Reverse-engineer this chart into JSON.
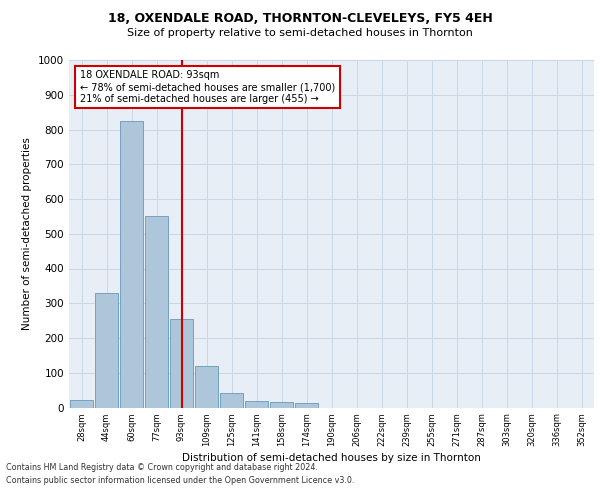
{
  "title1": "18, OXENDALE ROAD, THORNTON-CLEVELEYS, FY5 4EH",
  "title2": "Size of property relative to semi-detached houses in Thornton",
  "xlabel": "Distribution of semi-detached houses by size in Thornton",
  "ylabel": "Number of semi-detached properties",
  "categories": [
    "28sqm",
    "44sqm",
    "60sqm",
    "77sqm",
    "93sqm",
    "109sqm",
    "125sqm",
    "141sqm",
    "158sqm",
    "174sqm",
    "190sqm",
    "206sqm",
    "222sqm",
    "239sqm",
    "255sqm",
    "271sqm",
    "287sqm",
    "303sqm",
    "320sqm",
    "336sqm",
    "352sqm"
  ],
  "values": [
    22,
    330,
    825,
    550,
    255,
    118,
    43,
    20,
    15,
    13,
    0,
    0,
    0,
    0,
    0,
    0,
    0,
    0,
    0,
    0,
    0
  ],
  "bar_color": "#aec6d9",
  "bar_edge_color": "#6699bb",
  "vline_x_index": 4,
  "vline_color": "#cc0000",
  "annotation_text": "18 OXENDALE ROAD: 93sqm\n← 78% of semi-detached houses are smaller (1,700)\n21% of semi-detached houses are larger (455) →",
  "annotation_box_color": "#ffffff",
  "annotation_box_edge_color": "#cc0000",
  "ylim": [
    0,
    1000
  ],
  "yticks": [
    0,
    100,
    200,
    300,
    400,
    500,
    600,
    700,
    800,
    900,
    1000
  ],
  "grid_color": "#c8d8e8",
  "bg_color": "#e8eef5",
  "footer1": "Contains HM Land Registry data © Crown copyright and database right 2024.",
  "footer2": "Contains public sector information licensed under the Open Government Licence v3.0."
}
